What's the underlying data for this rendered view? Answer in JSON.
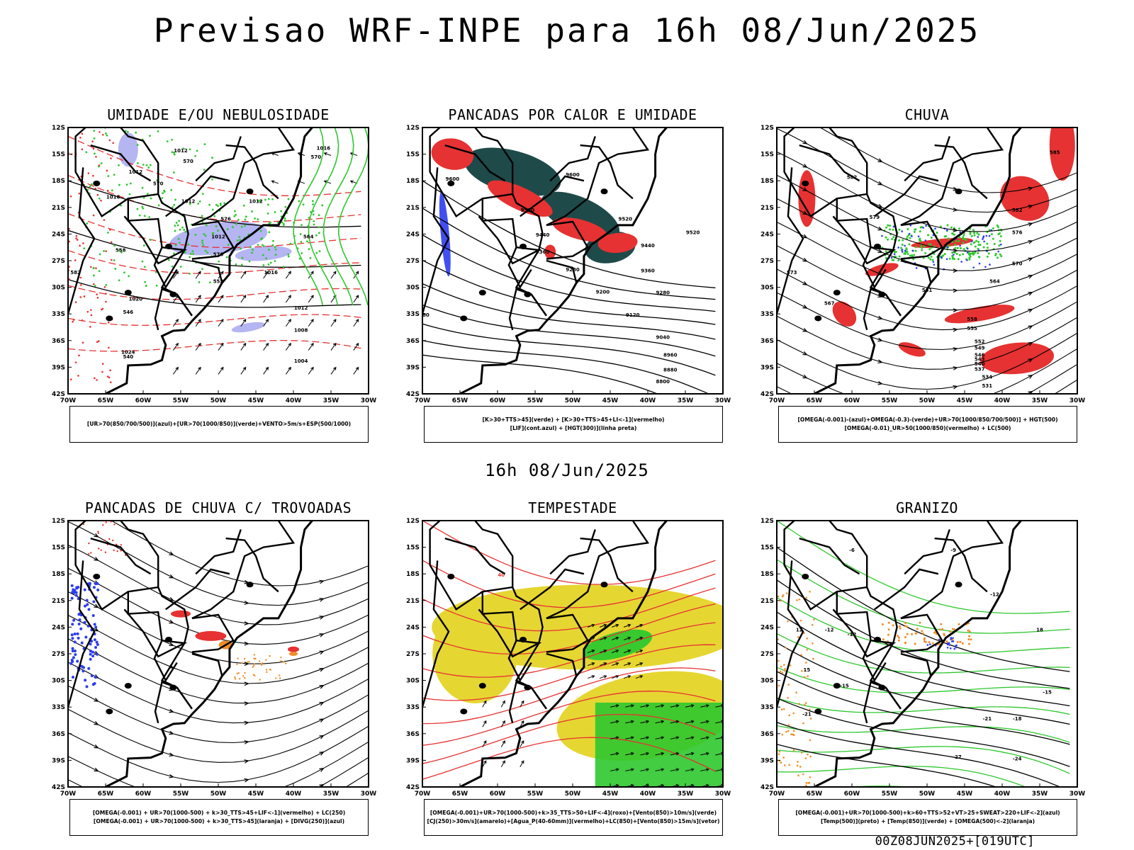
{
  "title": "Previsao WRF-INPE  para 16h 08/Jun/2025",
  "mid_time": "16h 08/Jun/2025",
  "footer": "00Z08JUN2025+[019UTC]",
  "axes": {
    "lat": [
      "12S",
      "15S",
      "18S",
      "21S",
      "24S",
      "27S",
      "30S",
      "33S",
      "36S",
      "39S",
      "42S"
    ],
    "lon": [
      "70W",
      "65W",
      "60W",
      "55W",
      "50W",
      "45W",
      "40W",
      "35W",
      "30W"
    ]
  },
  "colors": {
    "red": "#e63232",
    "green": "#2ec82e",
    "blue": "#2c3cf0",
    "lavender": "#a8a8f0",
    "yellow": "#e6d632",
    "orange": "#f08c28",
    "darkteal": "#1f4a4a"
  },
  "panels": [
    {
      "title": "UMIDADE E/OU NEBULOSIDADE",
      "legend": [
        "[UR>70(850/700/500)](azul)+[UR>70(1000/850)](verde)+VENTO>5m/s+ESP(500/1000)"
      ],
      "contour_labels": [
        "1012",
        "1012",
        "1012",
        "1016",
        "1016",
        "1012",
        "1012",
        "1016",
        "1020",
        "1024",
        "1012",
        "1008",
        "1004",
        "570",
        "570",
        "564",
        "558",
        "552",
        "546",
        "540",
        "576",
        "582",
        "576",
        "570"
      ]
    },
    {
      "title": "PANCADAS POR CALOR E UMIDADE",
      "legend": [
        "[K>30+TTS>45](verde) + [K>30+TTS>45+LI<-1](vermelho)",
        "[LIF](cont.azul) + [HGT(300)](linha preta)"
      ],
      "contour_labels": [
        "9600",
        "9600",
        "9520",
        "9520",
        "9440",
        "9440",
        "9360",
        "9360",
        "9280",
        "9280",
        "9200",
        "9120",
        "9040",
        "8960",
        "8880",
        "8800",
        "9280",
        "9520"
      ]
    },
    {
      "title": "CHUVA",
      "legend": [
        "[OMEGA(-0.001)-(azul)+OMEGA(-0.3)-(verde)+UR>70(1000/850/700/500)] + HGT(500)",
        "[OMEGA(-0.01)_UR>50(1000/850)(vermelho) + LC(500)"
      ],
      "contour_labels": [
        "585",
        "582",
        "582",
        "579",
        "576",
        "573",
        "570",
        "567",
        "564",
        "561",
        "558",
        "555",
        "552",
        "549",
        "546",
        "543",
        "540",
        "537",
        "534",
        "531"
      ]
    },
    {
      "title": "PANCADAS DE CHUVA C/ TROVOADAS",
      "legend": [
        "[OMEGA(-0.001) + UR>70(1000-500) + k>30_TTS>45+LIF<-1](vermelho) + LC(250)",
        "[OMEGA(-0.001) + UR>70(1000-500) + k>30_TTS>45](laranja) + [DIVG(250)](azul)"
      ],
      "contour_labels": []
    },
    {
      "title": "TEMPESTADE",
      "legend": [
        "[OMEGA(-0.001)+UR>70(1000-500)+k>35_TTS>50+LIF<-4](roxo)+[Vento(850)>10m/s](verde)",
        "[CJ(250)>30m/s](amarelo)+[Agua_P(40-60mm)](vermelho)+LC(850)+[Vento(850)>15m/s](vetor)"
      ],
      "contour_labels": [
        "40"
      ]
    },
    {
      "title": "GRANIZO",
      "legend": [
        "[OMEGA(-0.001)+UR>70(1000-500)+k>60+TTS>52+VT>25+SWEAT>220+LIF<-2](azul)",
        "[Temp(500)](preto) + [Temp(850)](verde) + [OMEGA(500)<-2](laranja)"
      ],
      "contour_labels": [
        "-9",
        "-6",
        "-12",
        "-12",
        "-12",
        "-15",
        "-15",
        "-18",
        "-21",
        "-21",
        "-24",
        "-27",
        "12",
        "15",
        "18"
      ]
    }
  ]
}
